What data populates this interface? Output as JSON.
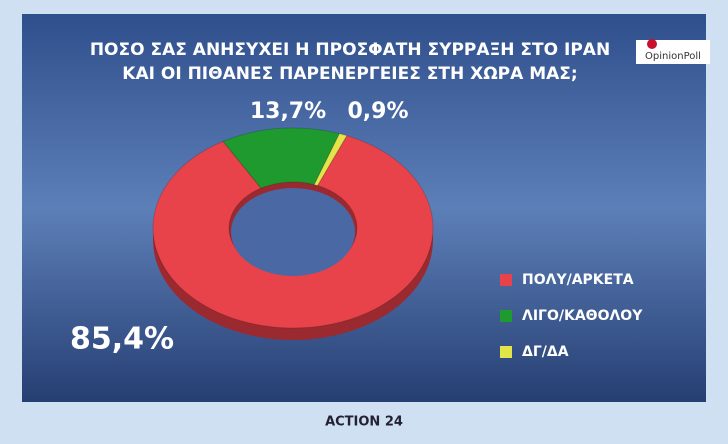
{
  "chart_data": {
    "type": "donut",
    "title": [
      "ΠΟΣΟ ΣΑΣ ΑΝΗΣΥΧΕΙ Η ΠΡΟΣΦΑΤΗ ΣΥΡΡΑΞΗ ΣΤΟ ΙΡΑΝ",
      "ΚΑΙ ΟΙ ΠΙΘΑΝΕΣ ΠΑΡΕΝΕΡΓΕΙΕΣ ΣΤΗ ΧΩΡΑ ΜΑΣ;"
    ],
    "categories": [
      "ΠΟΛΥ/ΑΡΚΕΤΑ",
      "ΛΙΓΟ/ΚΑΘΟΛΟΥ",
      "ΔΓ/ΔΑ"
    ],
    "values": [
      85.4,
      13.7,
      0.9
    ],
    "value_labels": [
      "85,4%",
      "13,7%",
      "0,9%"
    ],
    "colors": [
      "#e8434b",
      "#1f9a2e",
      "#e3e34a"
    ],
    "legend": "right"
  },
  "logo": "OpinionPoll",
  "channel": "ACTION 24"
}
